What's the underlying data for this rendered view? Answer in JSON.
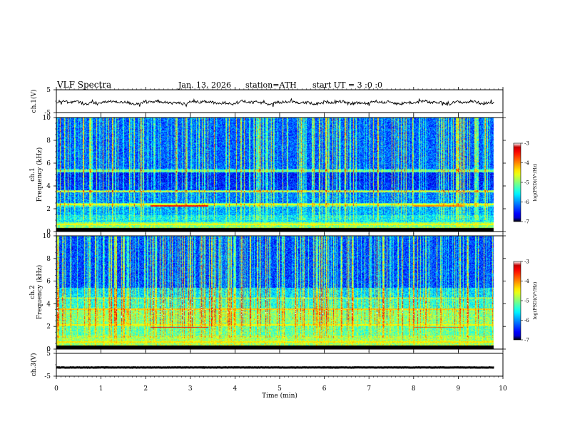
{
  "header": {
    "title": "VLF Spectra",
    "date": "Jan. 13, 2026",
    "station": "station=ATH",
    "start_ut": "start UT =  3 :0 :0"
  },
  "chart_data": [
    {
      "type": "line",
      "name": "ch1-waveform",
      "ylabel": "ch.1(V)",
      "ylim": [
        -5,
        5
      ],
      "yticks": [
        "5",
        "-5"
      ],
      "xlim": [
        0,
        10
      ],
      "series": [
        {
          "name": "ch.1 voltage",
          "mean": -0.6,
          "noise_amplitude": 1.2,
          "color": "#000000"
        }
      ]
    },
    {
      "type": "heatmap",
      "name": "ch1-spectrogram",
      "ylabel": "Frequency (kHz)",
      "ylabel_channel": "ch.1",
      "ylim": [
        0,
        10
      ],
      "yticks": [
        "0",
        "2",
        "4",
        "6",
        "8",
        "10"
      ],
      "xlim": [
        0,
        9.8
      ],
      "colorbar": {
        "title": "log(PSD)(V²/Hz)",
        "range": [
          -7,
          -3
        ],
        "ticks": [
          "-3",
          "-4",
          "-5",
          "-6",
          "-7"
        ]
      },
      "bands": [
        {
          "f_lo": 0.0,
          "f_hi": 0.3,
          "level": -7.0
        },
        {
          "f_lo": 0.3,
          "f_hi": 0.8,
          "level": -5.0
        },
        {
          "f_lo": 0.8,
          "f_hi": 1.4,
          "level": -5.6
        },
        {
          "f_lo": 1.4,
          "f_hi": 2.2,
          "level": -5.9
        },
        {
          "f_lo": 2.2,
          "f_hi": 2.5,
          "level": -5.2
        },
        {
          "f_lo": 2.5,
          "f_hi": 3.4,
          "level": -6.1
        },
        {
          "f_lo": 3.4,
          "f_hi": 3.6,
          "level": -5.1
        },
        {
          "f_lo": 3.6,
          "f_hi": 4.4,
          "level": -6.4
        },
        {
          "f_lo": 4.4,
          "f_hi": 5.2,
          "level": -6.5
        },
        {
          "f_lo": 5.2,
          "f_hi": 5.5,
          "level": -5.6
        },
        {
          "f_lo": 5.5,
          "f_hi": 10.0,
          "level": -6.2
        }
      ],
      "lines": [
        {
          "f": 2.25,
          "t_start": 2.1,
          "t_end": 3.4,
          "level": -3.5
        },
        {
          "f": 2.25,
          "t_start": 8.0,
          "t_end": 9.1,
          "level": -4.0
        },
        {
          "f": 2.35,
          "t_start": 0.0,
          "t_end": 9.8,
          "level": -4.6
        },
        {
          "f": 3.5,
          "t_start": 0.0,
          "t_end": 9.8,
          "level": -4.8
        },
        {
          "f": 5.3,
          "t_start": 0.0,
          "t_end": 9.8,
          "level": -5.0
        },
        {
          "f": 0.6,
          "t_start": 0.0,
          "t_end": 9.8,
          "level": -4.5
        }
      ],
      "sferic_density": 0.55
    },
    {
      "type": "heatmap",
      "name": "ch2-spectrogram",
      "ylabel": "Frequency (kHz)",
      "ylabel_channel": "ch.2",
      "ylim": [
        0,
        10
      ],
      "yticks": [
        "0",
        "2",
        "4",
        "6",
        "8",
        "10"
      ],
      "xlim": [
        0,
        9.8
      ],
      "colorbar": {
        "title": "log(PSD)(V²/Hz)",
        "range": [
          -7,
          -3
        ],
        "ticks": [
          "-3",
          "-4",
          "-5",
          "-6",
          "-7"
        ]
      },
      "bands": [
        {
          "f_lo": 0.0,
          "f_hi": 0.3,
          "level": -7.0
        },
        {
          "f_lo": 0.3,
          "f_hi": 1.2,
          "level": -4.9
        },
        {
          "f_lo": 1.2,
          "f_hi": 2.0,
          "level": -5.2
        },
        {
          "f_lo": 2.0,
          "f_hi": 3.6,
          "level": -5.0
        },
        {
          "f_lo": 3.6,
          "f_hi": 4.6,
          "level": -5.4
        },
        {
          "f_lo": 4.6,
          "f_hi": 5.4,
          "level": -5.7
        },
        {
          "f_lo": 5.4,
          "f_hi": 10.0,
          "level": -6.3
        }
      ],
      "lines": [
        {
          "f": 1.9,
          "t_start": 2.1,
          "t_end": 3.4,
          "level": -3.5
        },
        {
          "f": 1.9,
          "t_start": 8.0,
          "t_end": 9.1,
          "level": -3.8
        },
        {
          "f": 3.5,
          "t_start": 0.0,
          "t_end": 9.8,
          "level": -4.3
        },
        {
          "f": 4.5,
          "t_start": 0.0,
          "t_end": 9.8,
          "level": -4.6
        },
        {
          "f": 2.1,
          "t_start": 0.0,
          "t_end": 9.8,
          "level": -4.5
        },
        {
          "f": 0.6,
          "t_start": 0.0,
          "t_end": 9.8,
          "level": -4.4
        }
      ],
      "sferic_density": 0.6
    },
    {
      "type": "line",
      "name": "ch3-waveform",
      "ylabel": "ch.3(V)",
      "ylim": [
        -5,
        5
      ],
      "yticks": [
        "5",
        "-5"
      ],
      "xlim": [
        0,
        10
      ],
      "xlabel": "Time (min)",
      "xticks": [
        "0",
        "1",
        "2",
        "3",
        "4",
        "5",
        "6",
        "7",
        "8",
        "9",
        "10"
      ],
      "series": [
        {
          "name": "ch.3 voltage",
          "mean": -1.2,
          "noise_amplitude": 0.15,
          "color": "#000000"
        }
      ]
    }
  ]
}
